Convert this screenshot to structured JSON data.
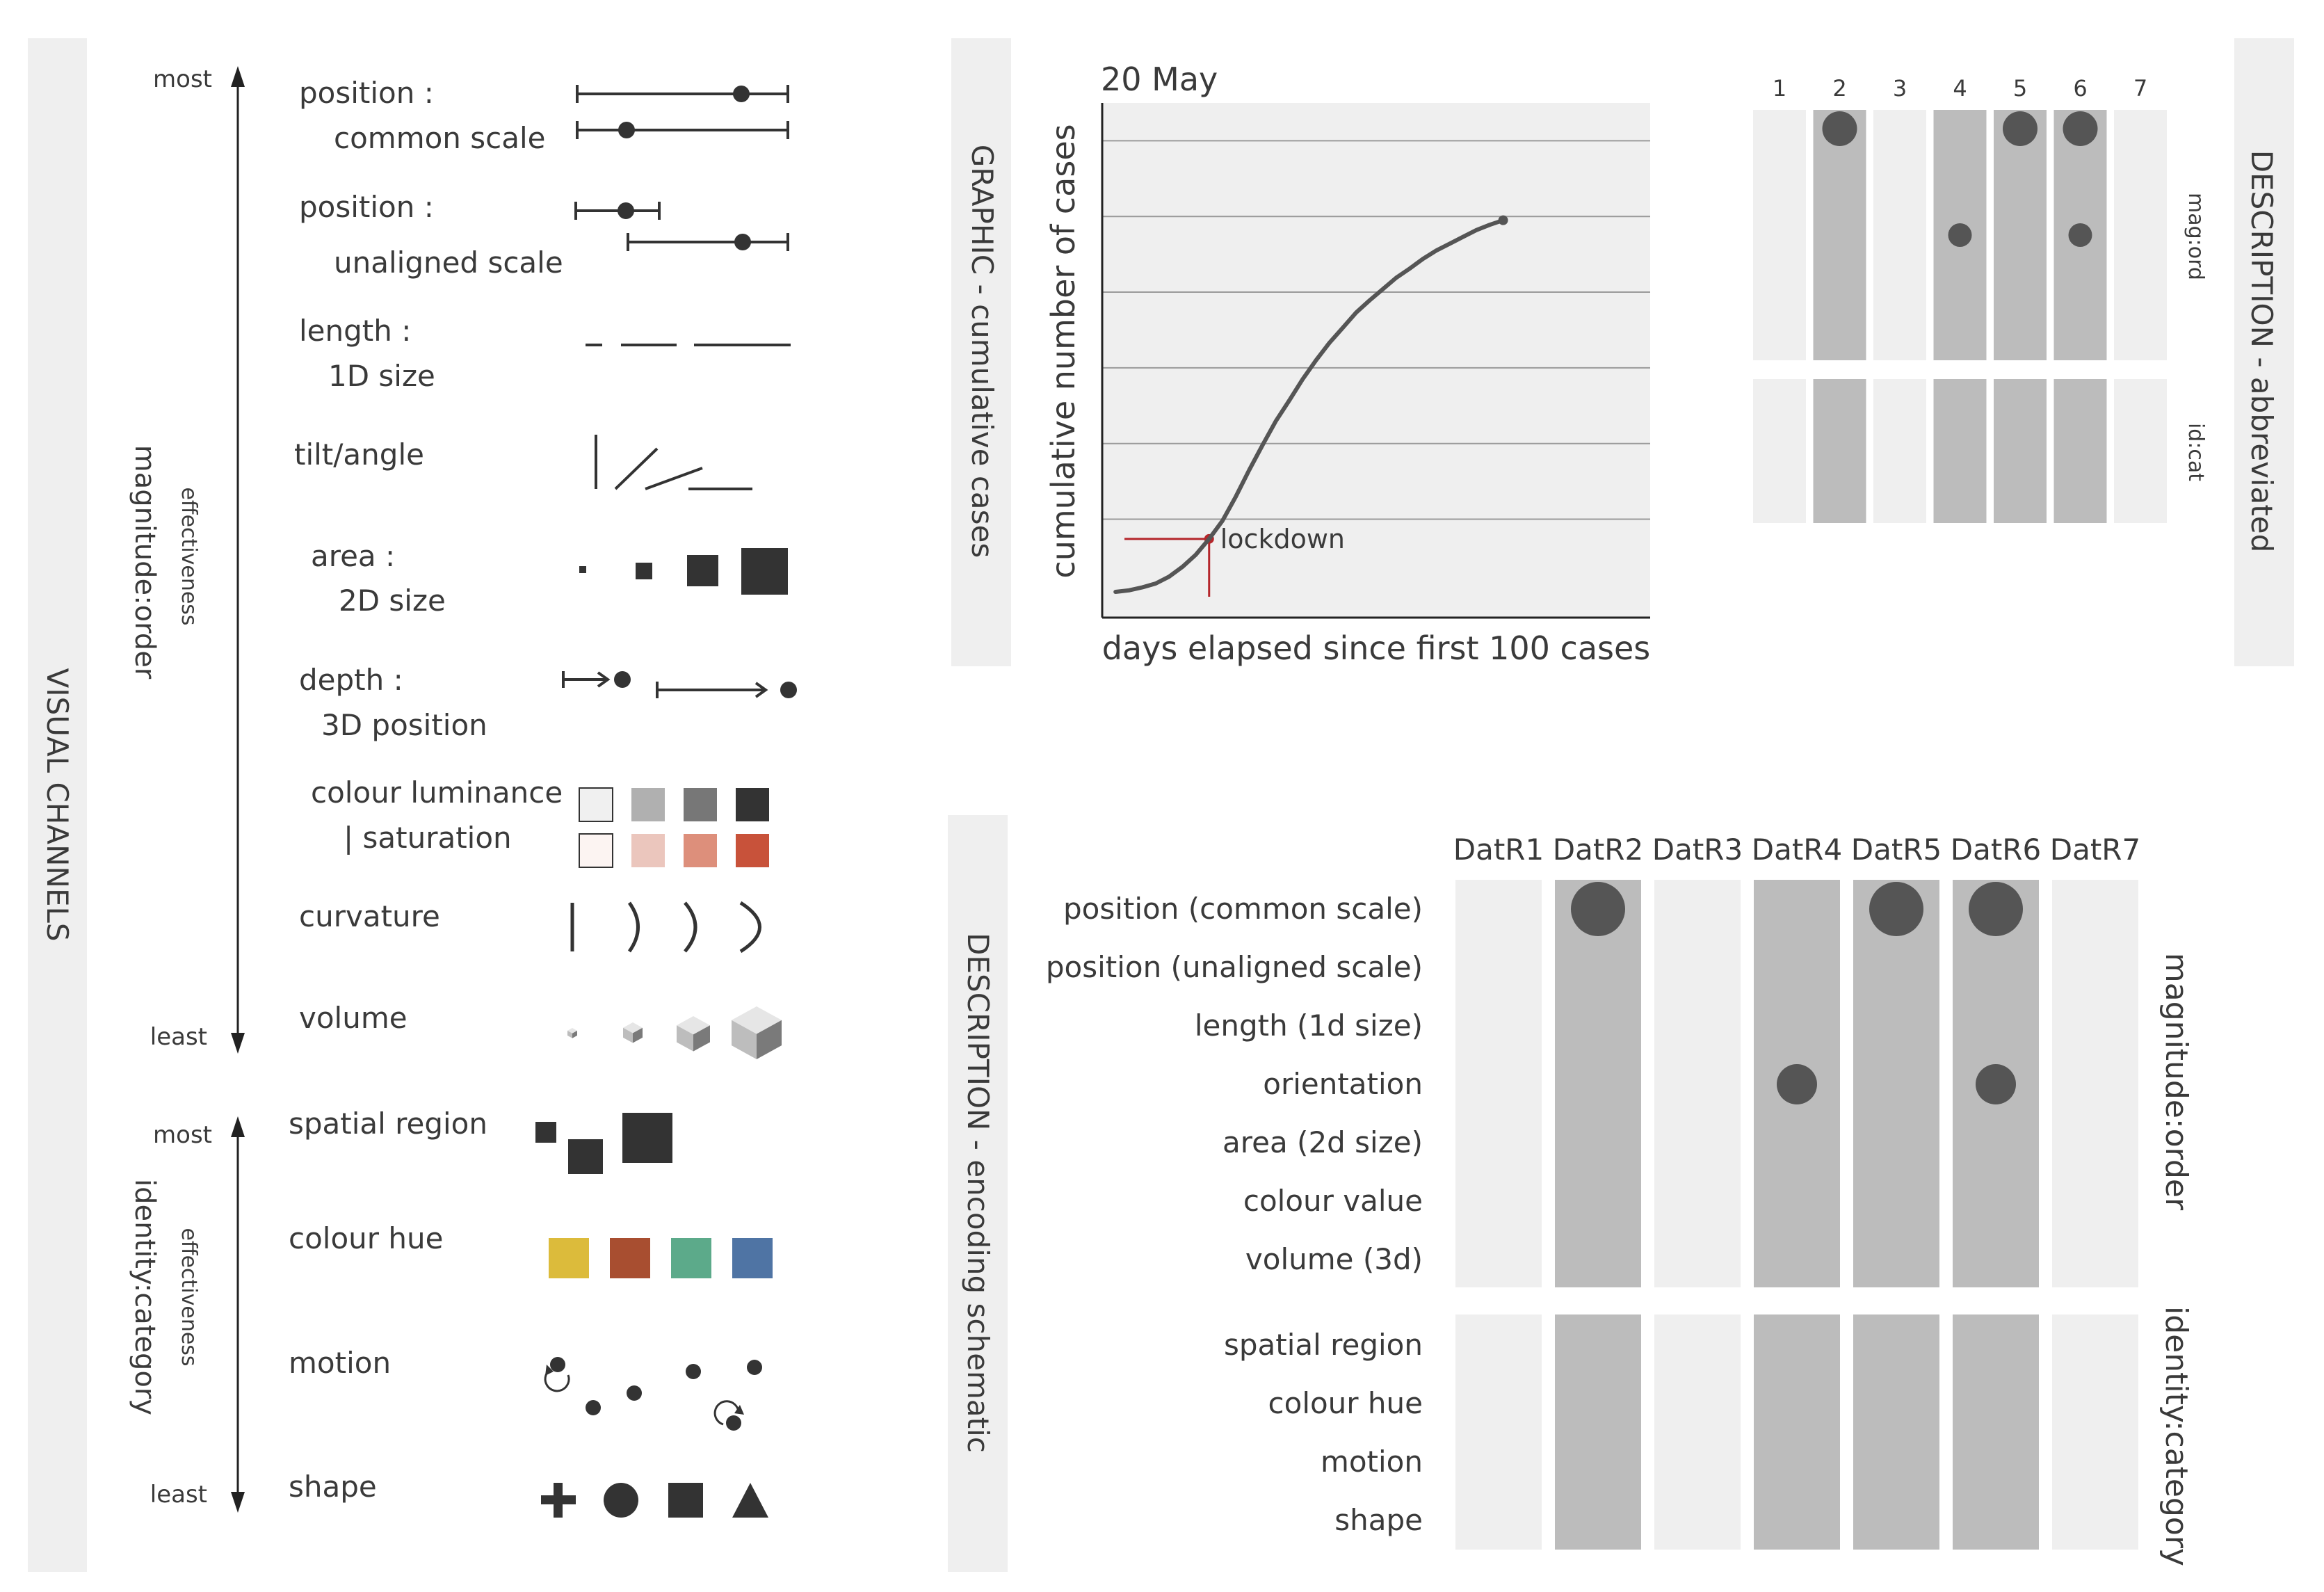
{
  "visual_channels": {
    "title": "VISUAL CHANNELS",
    "magnitude": {
      "group_label": "magnitude:order",
      "effectiveness": "effectiveness",
      "most": "most",
      "least": "least",
      "channels": [
        {
          "line1": "position :",
          "line2": "common scale"
        },
        {
          "line1": "position :",
          "line2": "unaligned scale"
        },
        {
          "line1": "length :",
          "line2": "1D size"
        },
        {
          "line1": "tilt/angle",
          "line2": ""
        },
        {
          "line1": "area :",
          "line2": "2D size"
        },
        {
          "line1": "depth :",
          "line2": "3D position"
        },
        {
          "line1": "colour luminance",
          "line2": "| saturation"
        },
        {
          "line1": "curvature",
          "line2": ""
        },
        {
          "line1": "volume",
          "line2": ""
        }
      ],
      "luminance_colors": [
        "#f0f0f0",
        "#b0b0b0",
        "#777777",
        "#333333"
      ],
      "saturation_colors": [
        "#fcf4f2",
        "#ebc6bd",
        "#dd8f7b",
        "#c8523a"
      ]
    },
    "identity": {
      "group_label": "identity:category",
      "effectiveness": "effectiveness",
      "most": "most",
      "least": "least",
      "channels": [
        "spatial region",
        "colour hue",
        "motion",
        "shape"
      ],
      "hue_colors": [
        "#dcbb3b",
        "#a84e30",
        "#5caa8a",
        "#4f74a4"
      ]
    }
  },
  "graphic": {
    "side_label": "GRAPHIC - cumulative cases",
    "annotation_date": "20 May",
    "lockdown_label": "lockdown",
    "line_color": "#555555",
    "lockdown_color": "#b5262b"
  },
  "chart_data": {
    "type": "line",
    "title": "",
    "xlabel": "days elapsed since first 100 cases",
    "ylabel": "cumulative number of cases",
    "grid": "horizontal",
    "gridlines": 6,
    "x": [
      0,
      3,
      6,
      9,
      12,
      15,
      18,
      21,
      24,
      27,
      30,
      33,
      36,
      39,
      42,
      45,
      48,
      51,
      54,
      57,
      60,
      63,
      66,
      69,
      72,
      75,
      78,
      81,
      84,
      87
    ],
    "y": [
      0.04,
      0.06,
      0.1,
      0.15,
      0.24,
      0.37,
      0.53,
      0.74,
      0.98,
      1.3,
      1.65,
      1.98,
      2.3,
      2.57,
      2.85,
      3.1,
      3.33,
      3.53,
      3.73,
      3.89,
      4.04,
      4.19,
      4.31,
      4.44,
      4.55,
      4.64,
      4.73,
      4.82,
      4.89,
      4.95
    ],
    "xlim": [
      -3,
      120
    ],
    "ylim": [
      -0.3,
      6.5
    ],
    "lockdown": {
      "x": 21,
      "y": 0.74
    },
    "end_annotation": "20 May"
  },
  "abbreviated": {
    "side_label": "DESCRIPTION - abbreviated",
    "columns": [
      "1",
      "2",
      "3",
      "4",
      "5",
      "6",
      "7"
    ],
    "mag_label": "mag:ord",
    "id_label": "id:cat"
  },
  "schematic": {
    "side_label": "DESCRIPTION - encoding schematic",
    "columns": [
      "DatR1",
      "DatR2",
      "DatR3",
      "DatR4",
      "DatR5",
      "DatR6",
      "DatR7"
    ],
    "magnitude_label": "magnitude:order",
    "identity_label": "identity:category",
    "magnitude_rows": [
      "position (common scale)",
      "position (unaligned scale)",
      "length (1d size)",
      "orientation",
      "area (2d size)",
      "colour value",
      "volume (3d)"
    ],
    "identity_rows": [
      "spatial region",
      "colour hue",
      "motion",
      "shape"
    ],
    "active_columns": [
      2,
      4,
      5,
      6
    ],
    "marks": [
      {
        "column": 2,
        "row": 1
      },
      {
        "column": 4,
        "row": 4
      },
      {
        "column": 5,
        "row": 1
      },
      {
        "column": 6,
        "row": 1
      },
      {
        "column": 6,
        "row": 4
      }
    ]
  }
}
